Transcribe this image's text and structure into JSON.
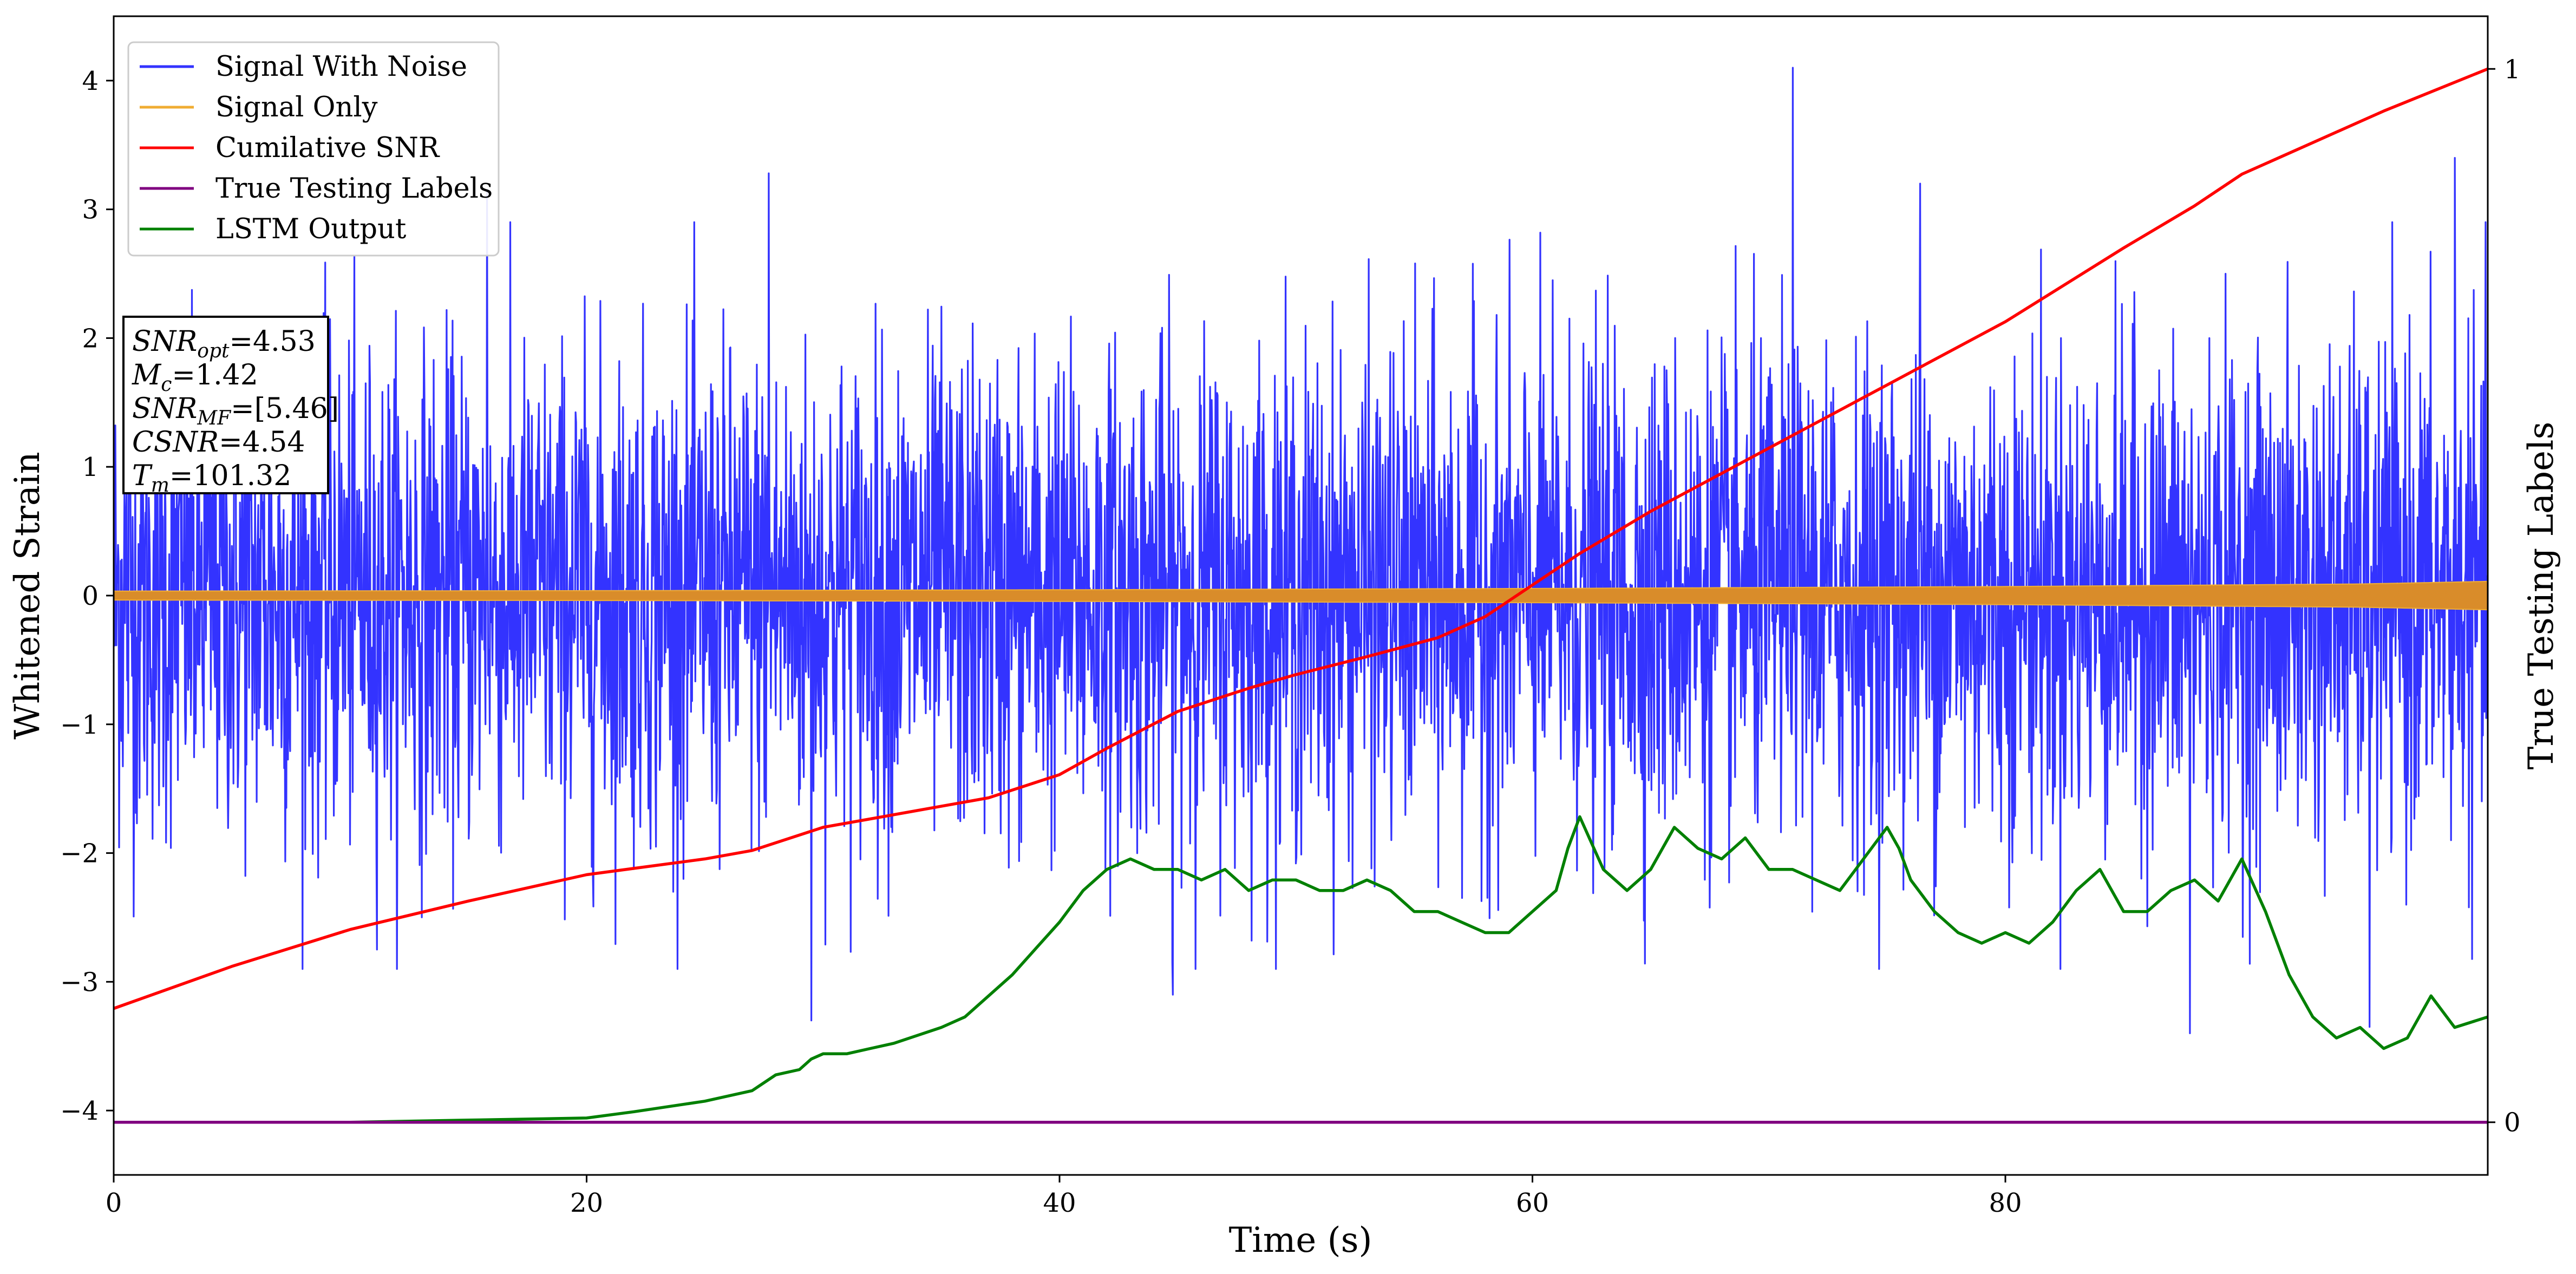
{
  "chart_data": {
    "type": "line",
    "title": "",
    "xlabel": "Time (s)",
    "ylabel": "Whitened Strain",
    "y2label": "True Testing Labels",
    "xlim": [
      0,
      100.4
    ],
    "ylim": [
      -4.5,
      4.5
    ],
    "y2lim": [
      -0.05,
      1.05
    ],
    "x_ticks": [
      0,
      20,
      40,
      60,
      80
    ],
    "y_ticks": [
      -4,
      -3,
      -2,
      -1,
      0,
      1,
      2,
      3,
      4
    ],
    "y2_ticks": [
      0,
      1
    ],
    "grid": false,
    "legend_position": "top-left",
    "info_box": [
      "SNR_opt=4.53",
      "M_c=1.42",
      "SNR_MF=[5.46]",
      "CSNR=4.54",
      "T_m=101.32"
    ],
    "series": [
      {
        "name": "Signal With Noise",
        "color": "#3333ff",
        "axis": "left",
        "sigma": 0.95,
        "peaks": [
          {
            "x": 71.0,
            "y": 4.1
          },
          {
            "x": 27.7,
            "y": 3.28
          },
          {
            "x": 15.8,
            "y": 3.15
          },
          {
            "x": 99.0,
            "y": 3.4
          },
          {
            "x": 76.4,
            "y": 3.2
          },
          {
            "x": 29.5,
            "y": -3.3
          },
          {
            "x": 87.8,
            "y": -3.4
          },
          {
            "x": 95.4,
            "y": -3.35
          },
          {
            "x": 44.8,
            "y": -3.1
          }
        ]
      },
      {
        "name": "Signal Only",
        "color": "#f0ad33",
        "axis": "left",
        "amplitude_x": [
          0,
          20,
          40,
          60,
          80,
          95,
          100.4
        ],
        "amplitude_y": [
          0.035,
          0.038,
          0.045,
          0.055,
          0.07,
          0.09,
          0.11
        ]
      },
      {
        "name": "Cumilative SNR",
        "color": "#ff0000",
        "axis": "right",
        "x": [
          0,
          5,
          10,
          15,
          20,
          25,
          27,
          30,
          35,
          37,
          40,
          42,
          45,
          48,
          50,
          53,
          56,
          58,
          60,
          62,
          65,
          70,
          75,
          80,
          85,
          88,
          90,
          95,
          96,
          100.4
        ],
        "y": [
          0.108,
          0.148,
          0.183,
          0.21,
          0.235,
          0.25,
          0.258,
          0.28,
          0.3,
          0.308,
          0.33,
          0.355,
          0.39,
          0.412,
          0.425,
          0.442,
          0.46,
          0.48,
          0.51,
          0.54,
          0.58,
          0.64,
          0.7,
          0.76,
          0.83,
          0.87,
          0.9,
          0.95,
          0.96,
          1.0
        ]
      },
      {
        "name": "True Testing Labels",
        "color": "#800080",
        "axis": "right",
        "x": [
          0,
          100.4
        ],
        "y": [
          0,
          0
        ]
      },
      {
        "name": "LSTM Output",
        "color": "#008000",
        "axis": "right",
        "x": [
          0,
          10,
          15,
          20,
          22,
          25,
          27,
          28,
          29,
          29.5,
          30,
          31,
          32,
          33,
          35,
          36,
          37,
          38,
          39,
          40,
          41,
          42,
          43,
          44,
          45,
          46,
          47,
          48,
          49,
          50,
          51,
          52,
          53,
          54,
          55,
          56,
          57,
          58,
          59,
          60,
          61,
          61.5,
          62,
          63,
          64,
          65,
          66,
          67,
          68,
          69,
          70,
          71,
          72,
          73,
          74,
          75,
          75.5,
          76,
          77,
          78,
          79,
          80,
          81,
          82,
          83,
          84,
          85,
          86,
          87,
          88,
          89,
          90,
          91,
          92,
          93,
          94,
          95,
          96,
          97,
          98,
          99,
          100.4
        ],
        "y": [
          0.0,
          0.0,
          0.002,
          0.004,
          0.01,
          0.02,
          0.03,
          0.045,
          0.05,
          0.06,
          0.065,
          0.065,
          0.07,
          0.075,
          0.09,
          0.1,
          0.12,
          0.14,
          0.165,
          0.19,
          0.22,
          0.24,
          0.25,
          0.24,
          0.24,
          0.23,
          0.24,
          0.22,
          0.23,
          0.23,
          0.22,
          0.22,
          0.23,
          0.22,
          0.2,
          0.2,
          0.19,
          0.18,
          0.18,
          0.2,
          0.22,
          0.26,
          0.29,
          0.24,
          0.22,
          0.24,
          0.28,
          0.26,
          0.25,
          0.27,
          0.24,
          0.24,
          0.23,
          0.22,
          0.25,
          0.28,
          0.26,
          0.23,
          0.2,
          0.18,
          0.17,
          0.18,
          0.17,
          0.19,
          0.22,
          0.24,
          0.2,
          0.2,
          0.22,
          0.23,
          0.21,
          0.25,
          0.2,
          0.14,
          0.1,
          0.08,
          0.09,
          0.07,
          0.08,
          0.12,
          0.09,
          0.1
        ]
      }
    ]
  }
}
